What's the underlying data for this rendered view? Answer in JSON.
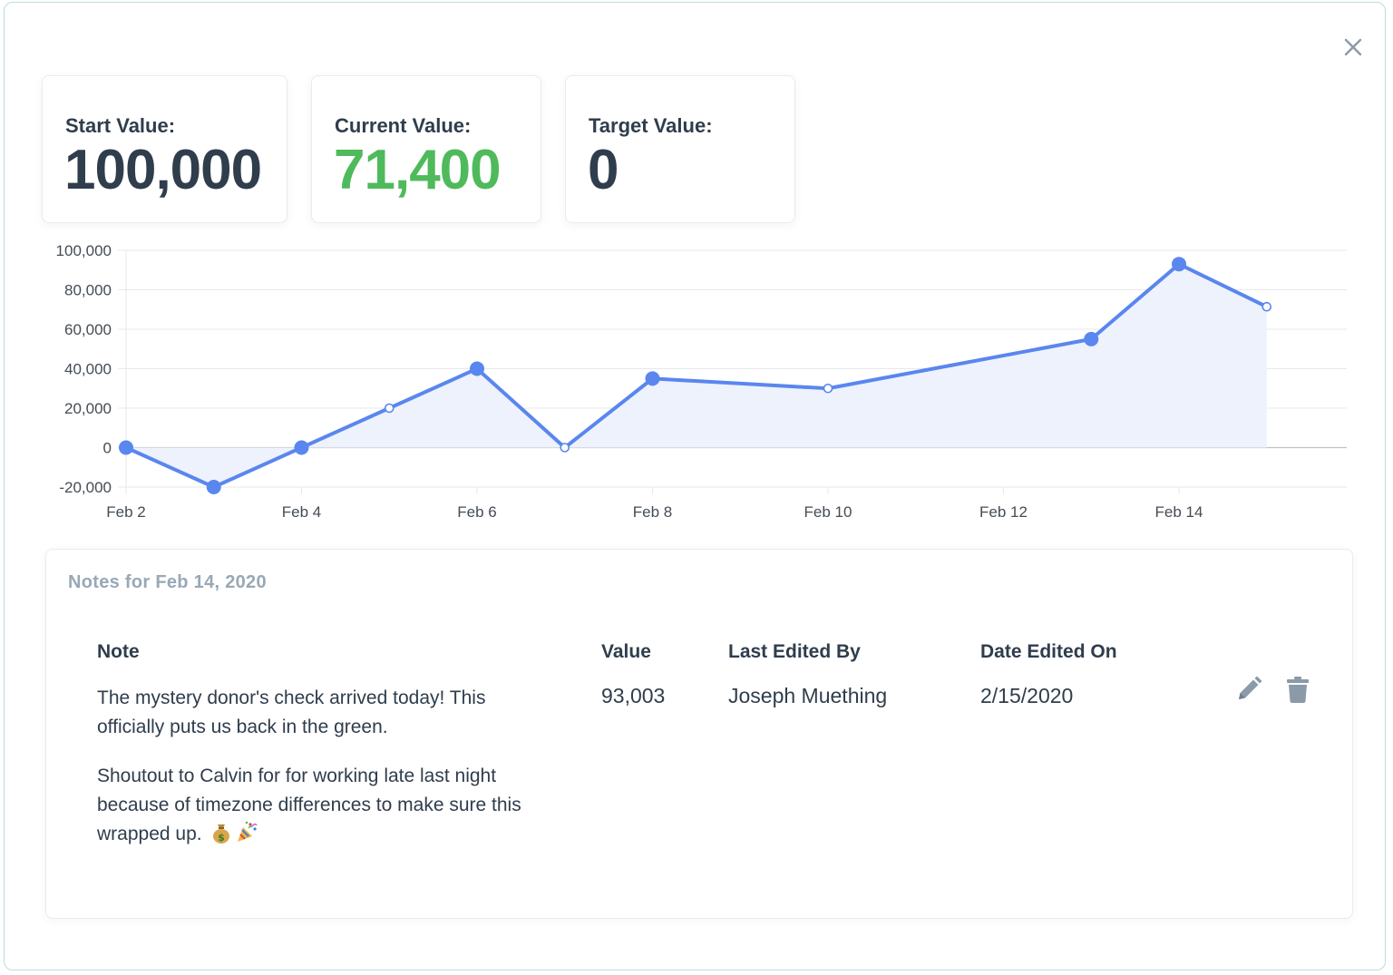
{
  "colors": {
    "accent": "#5a86ef",
    "accent_fill": "#eef2fd",
    "positive": "#4fba5b",
    "text_dark": "#2f3d4c",
    "text_muted": "#98a8b6",
    "icon_gray": "#8b9aa8"
  },
  "stats": {
    "start": {
      "label": "Start Value:",
      "value": "100,000"
    },
    "current": {
      "label": "Current Value:",
      "value": "71,400"
    },
    "target": {
      "label": "Target Value:",
      "value": "0"
    }
  },
  "chart_data": {
    "type": "area",
    "x_type": "date",
    "x_ticks": [
      "Feb 2",
      "Feb 4",
      "Feb 6",
      "Feb 8",
      "Feb 10",
      "Feb 12",
      "Feb 14"
    ],
    "y_ticks": [
      "100,000",
      "80,000",
      "60,000",
      "40,000",
      "20,000",
      "0",
      "-20,000"
    ],
    "ylim": [
      -20000,
      100000
    ],
    "grid": true,
    "series": [
      {
        "points": [
          {
            "x": "2020-02-02",
            "y": 0,
            "has_note": true
          },
          {
            "x": "2020-02-03",
            "y": -20000,
            "has_note": true
          },
          {
            "x": "2020-02-04",
            "y": 0,
            "has_note": true
          },
          {
            "x": "2020-02-05",
            "y": 20000,
            "has_note": false
          },
          {
            "x": "2020-02-06",
            "y": 40000,
            "has_note": true
          },
          {
            "x": "2020-02-07",
            "y": 0,
            "has_note": false
          },
          {
            "x": "2020-02-08",
            "y": 35000,
            "has_note": true
          },
          {
            "x": "2020-02-10",
            "y": 30000,
            "has_note": false
          },
          {
            "x": "2020-02-13",
            "y": 55000,
            "has_note": true
          },
          {
            "x": "2020-02-14",
            "y": 93003,
            "has_note": true
          },
          {
            "x": "2020-02-15",
            "y": 71400,
            "has_note": false
          }
        ]
      }
    ]
  },
  "notes": {
    "title": "Notes for Feb 14, 2020",
    "columns": [
      "Note",
      "Value",
      "Last Edited By",
      "Date Edited On"
    ],
    "rows": [
      {
        "note_paragraphs": [
          "The mystery donor's check arrived today! This officially puts us back in the green.",
          "Shoutout to Calvin for for working late last night because of timezone differences to make sure this wrapped up."
        ],
        "emojis": [
          "money-bag-icon",
          "party-popper-icon"
        ],
        "value": "93,003",
        "edited_by": "Joseph Muething",
        "edited_on": "2/15/2020"
      }
    ],
    "actions": [
      "pencil-icon",
      "trash-icon"
    ]
  },
  "modal": {
    "close_icon": "close-icon"
  }
}
